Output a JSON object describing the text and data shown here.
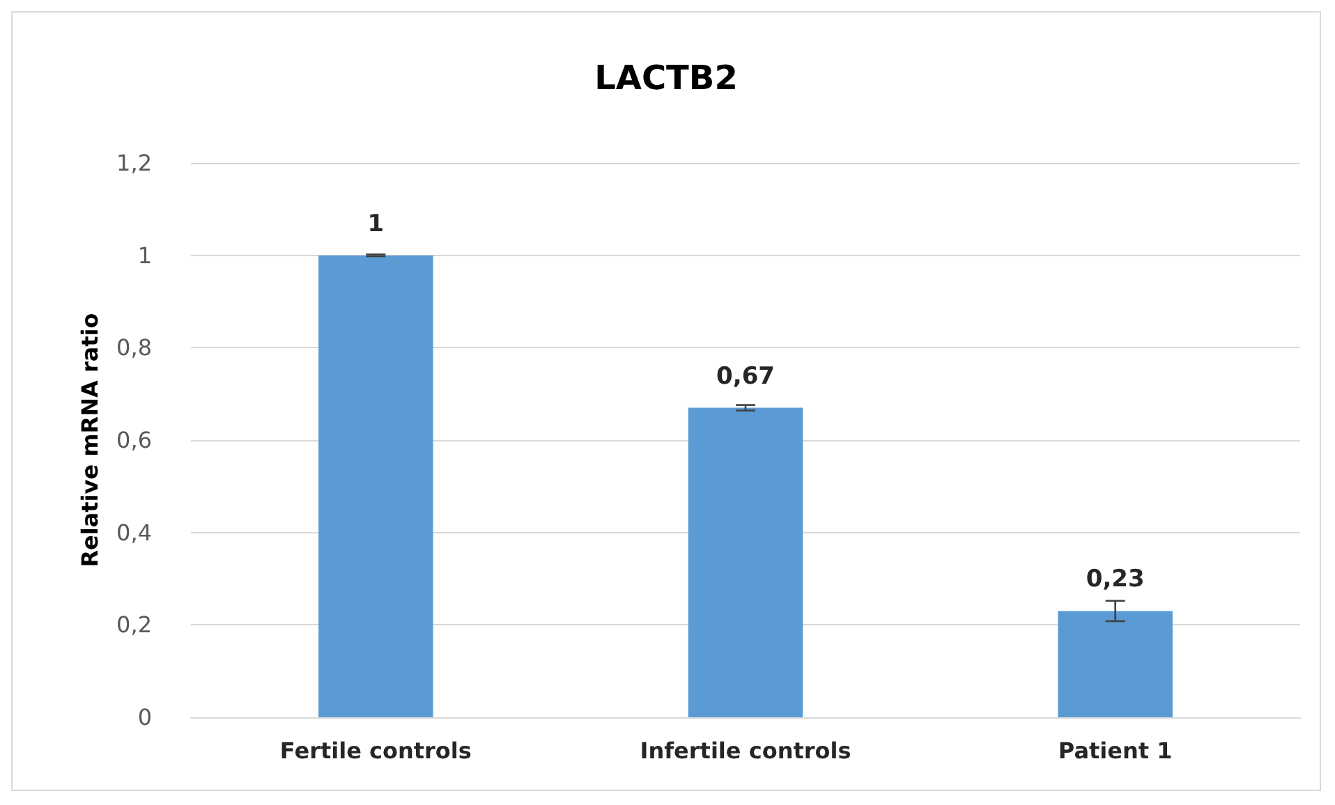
{
  "chart_data": {
    "type": "bar",
    "title": "LACTB2",
    "ylabel": "Relative mRNA ratio",
    "categories": [
      "Fertile controls",
      "Infertile controls",
      "Patient 1"
    ],
    "values": [
      1,
      0.67,
      0.23
    ],
    "errors": [
      0.002,
      0.006,
      0.022
    ],
    "value_labels": [
      "1",
      "0,67",
      "0,23"
    ],
    "color": "#5b9bd5",
    "ylim": [
      0,
      1.2
    ],
    "yticks": [
      0,
      {
        "value": 0.2,
        "label": "0,2"
      },
      {
        "value": 0.4,
        "label": "0,4"
      },
      {
        "value": 0.6,
        "label": "0,6"
      },
      {
        "value": 0.8,
        "label": "0,8"
      },
      1,
      {
        "value": 1.2,
        "label": "1,2"
      }
    ],
    "grid": "y"
  }
}
